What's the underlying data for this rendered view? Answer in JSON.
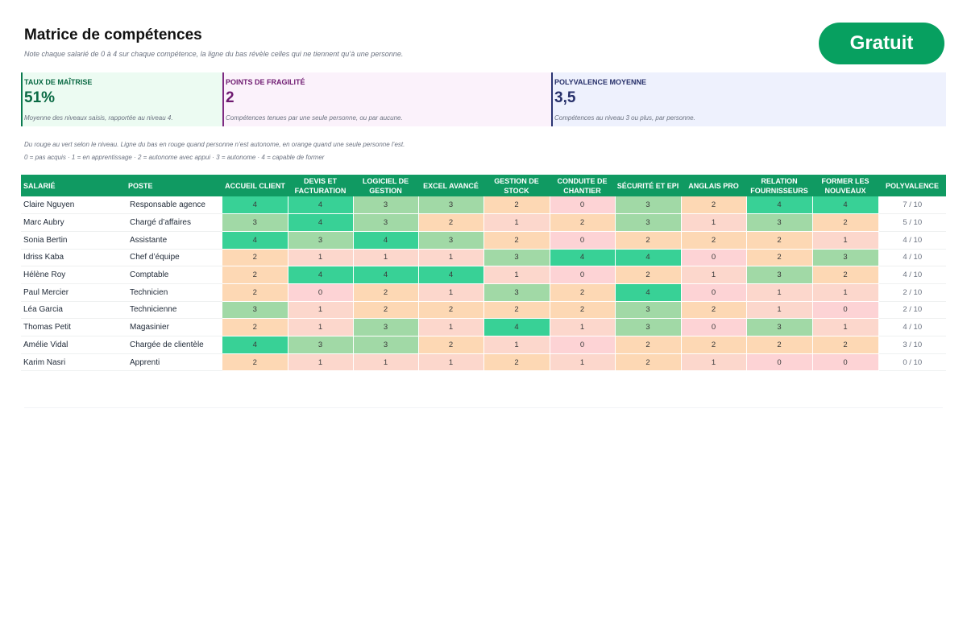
{
  "header": {
    "title": "Matrice de compétences",
    "subtitle": "Note chaque salarié de 0 à 4 sur chaque compétence, la ligne du bas révèle celles qui ne tiennent qu’à une personne.",
    "badge": "Gratuit"
  },
  "kpis": [
    {
      "label": "Taux de maîtrise",
      "value": "51%",
      "description": "Moyenne des niveaux saisis, rapportée au niveau 4."
    },
    {
      "label": "Points de fragilité",
      "value": "2",
      "description": "Compétences tenues par une seule personne, ou par aucune."
    },
    {
      "label": "Polyvalence moyenne",
      "value": "3,5",
      "description": "Compétences au niveau 3 ou plus, par personne."
    }
  ],
  "notes": {
    "legend_text": "Du rouge au vert selon le niveau. Ligne du bas en rouge quand personne n’est autonome, en orange quand une seule personne l’est.",
    "scale_text": "0 = pas acquis · 1 = en apprentissage · 2 = autonome avec appui · 3 = autonome · 4 = capable de former"
  },
  "table": {
    "col_employee": "Salarié",
    "col_position": "Poste",
    "col_versatility": "Polyvalence",
    "skills": [
      "Accueil client",
      "Devis et facturation",
      "Logiciel de gestion",
      "Excel avancé",
      "Gestion de stock",
      "Conduite de chantier",
      "Sécurité et EPI",
      "Anglais pro",
      "Relation fournisseurs",
      "Former les nouveaux"
    ],
    "rows": [
      {
        "name": "Claire Nguyen",
        "position": "Responsable agence",
        "levels": [
          4,
          4,
          3,
          3,
          2,
          0,
          3,
          2,
          4,
          4
        ],
        "versatility": "7 / 10"
      },
      {
        "name": "Marc Aubry",
        "position": "Chargé d’affaires",
        "levels": [
          3,
          4,
          3,
          2,
          1,
          2,
          3,
          1,
          3,
          2
        ],
        "versatility": "5 / 10"
      },
      {
        "name": "Sonia Bertin",
        "position": "Assistante",
        "levels": [
          4,
          3,
          4,
          3,
          2,
          0,
          2,
          2,
          2,
          1
        ],
        "versatility": "4 / 10"
      },
      {
        "name": "Idriss Kaba",
        "position": "Chef d’équipe",
        "levels": [
          2,
          1,
          1,
          1,
          3,
          4,
          4,
          0,
          2,
          3
        ],
        "versatility": "4 / 10"
      },
      {
        "name": "Hélène Roy",
        "position": "Comptable",
        "levels": [
          2,
          4,
          4,
          4,
          1,
          0,
          2,
          1,
          3,
          2
        ],
        "versatility": "4 / 10"
      },
      {
        "name": "Paul Mercier",
        "position": "Technicien",
        "levels": [
          2,
          0,
          2,
          1,
          3,
          2,
          4,
          0,
          1,
          1
        ],
        "versatility": "2 / 10"
      },
      {
        "name": "Léa Garcia",
        "position": "Technicienne",
        "levels": [
          3,
          1,
          2,
          2,
          2,
          2,
          3,
          2,
          1,
          0
        ],
        "versatility": "2 / 10"
      },
      {
        "name": "Thomas Petit",
        "position": "Magasinier",
        "levels": [
          2,
          1,
          3,
          1,
          4,
          1,
          3,
          0,
          3,
          1
        ],
        "versatility": "4 / 10"
      },
      {
        "name": "Amélie Vidal",
        "position": "Chargée de clientèle",
        "levels": [
          4,
          3,
          3,
          2,
          1,
          0,
          2,
          2,
          2,
          2
        ],
        "versatility": "3 / 10"
      },
      {
        "name": "Karim Nasri",
        "position": "Apprenti",
        "levels": [
          2,
          1,
          1,
          1,
          2,
          1,
          2,
          1,
          0,
          0
        ],
        "versatility": "0 / 10"
      }
    ]
  }
}
